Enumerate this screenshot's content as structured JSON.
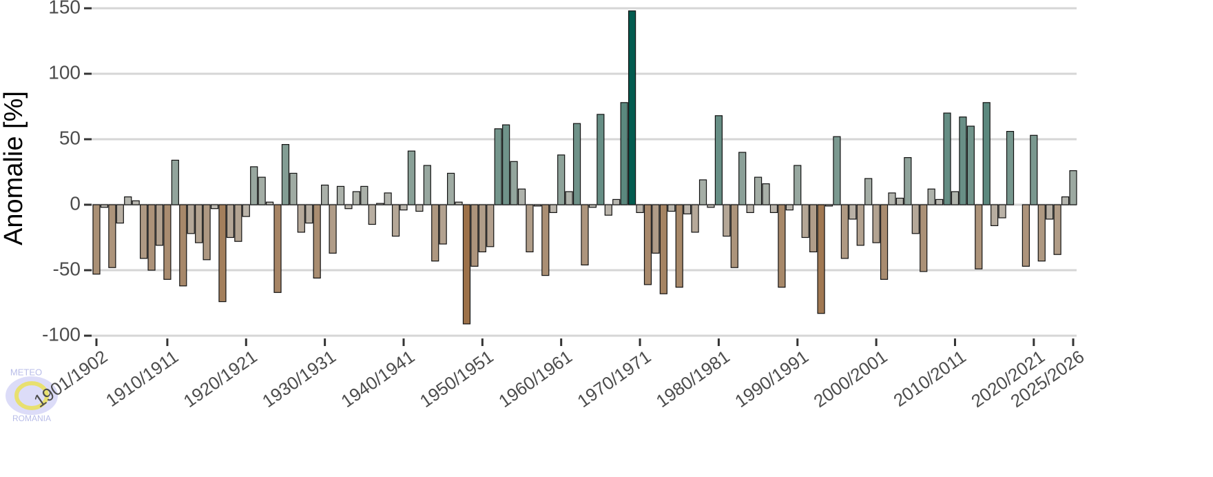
{
  "chart_data": {
    "type": "bar",
    "ylabel": "Anomalie [%]",
    "categories": [
      "1901/1902",
      null,
      null,
      null,
      null,
      null,
      null,
      null,
      null,
      "1910/1911",
      null,
      null,
      null,
      null,
      null,
      null,
      null,
      null,
      null,
      "1920/1921",
      null,
      null,
      null,
      null,
      null,
      null,
      null,
      null,
      null,
      "1930/1931",
      null,
      null,
      null,
      null,
      null,
      null,
      null,
      null,
      null,
      "1940/1941",
      null,
      null,
      null,
      null,
      null,
      null,
      null,
      null,
      null,
      "1950/1951",
      null,
      null,
      null,
      null,
      null,
      null,
      null,
      null,
      null,
      "1960/1961",
      null,
      null,
      null,
      null,
      null,
      null,
      null,
      null,
      null,
      "1970/1971",
      null,
      null,
      null,
      null,
      null,
      null,
      null,
      null,
      null,
      "1980/1981",
      null,
      null,
      null,
      null,
      null,
      null,
      null,
      null,
      null,
      "1990/1991",
      null,
      null,
      null,
      null,
      null,
      null,
      null,
      null,
      null,
      "2000/2001",
      null,
      null,
      null,
      null,
      null,
      null,
      null,
      null,
      null,
      "2010/2011",
      null,
      null,
      null,
      null,
      null,
      null,
      null,
      null,
      null,
      "2020/2021",
      null,
      null,
      null,
      null,
      "2025/2026"
    ],
    "values": [
      -53,
      -2,
      -48,
      -14,
      6,
      3,
      -41,
      -50,
      -31,
      -57,
      34,
      -62,
      -22,
      -29,
      -42,
      -3,
      -74,
      -25,
      -28,
      -9,
      29,
      21,
      2,
      -67,
      46,
      24,
      -21,
      -14,
      -56,
      15,
      -37,
      14,
      -3,
      10,
      14,
      -15,
      1,
      9,
      -24,
      -4,
      41,
      -5,
      30,
      -43,
      -30,
      24,
      2,
      -91,
      -47,
      -36,
      -32,
      58,
      61,
      33,
      12,
      -36,
      -1,
      -54,
      -6,
      38,
      10,
      62,
      -46,
      -2,
      69,
      -8,
      4,
      78,
      148,
      -6,
      -61,
      -37,
      -68,
      -5,
      -63,
      -7,
      -21,
      19,
      -2,
      68,
      -24,
      -48,
      40,
      -6,
      21,
      16,
      -6,
      -63,
      -4,
      30,
      -25,
      -36,
      -83,
      -1,
      52,
      -41,
      -11,
      -31,
      20,
      -29,
      -57,
      9,
      5,
      36,
      -22,
      -51,
      12,
      4,
      70,
      10,
      67,
      60,
      -49,
      78,
      -16,
      -10,
      56,
      0,
      -47,
      53,
      -43,
      -11,
      -38,
      6,
      26
    ],
    "colorscale": {
      "low": "#9a6a3e",
      "mid": "#bdbab3",
      "high": "#005a4e"
    },
    "ylim": [
      -100,
      150
    ],
    "yticks": [
      -100,
      -50,
      0,
      50,
      100,
      150
    ],
    "grid": true,
    "watermark": {
      "top": "METEO",
      "bottom": "ROMANIA"
    }
  }
}
